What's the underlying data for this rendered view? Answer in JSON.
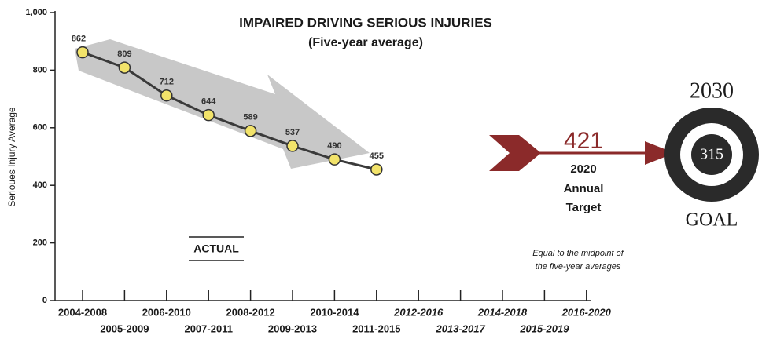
{
  "chart_data": {
    "type": "line",
    "title": "IMPAIRED DRIVING SERIOUS INJURIES",
    "subtitle": "(Five-year average)",
    "y_label": "Serioues Injury Average",
    "categories": [
      "2004-2008",
      "2005-2009",
      "2006-2010",
      "2007-2011",
      "2008-2012",
      "2009-2013",
      "2010-2014",
      "2011-2015",
      "2012-2016",
      "2013-2017",
      "2014-2018",
      "2015-2019",
      "2016-2020"
    ],
    "series": [
      {
        "name": "ACTUAL",
        "color": "#3a3a3a",
        "marker_color": "#f2e36a",
        "values": [
          862,
          809,
          712,
          644,
          589,
          537,
          490,
          455,
          null,
          null,
          null,
          null,
          null
        ]
      }
    ],
    "ylim": [
      0,
      1000
    ],
    "yticks": [
      0,
      200,
      400,
      600,
      800,
      {
        "value": 1000,
        "label": "1,000"
      }
    ],
    "target": {
      "value": 421,
      "year": "2020",
      "lines": [
        "Annual",
        "Target"
      ],
      "color": "#8b2a2a"
    },
    "goal": {
      "value": 315,
      "year": "2030",
      "label": "GOAL"
    },
    "note": [
      "Equal to the midpoint of",
      "the five-year averages"
    ]
  }
}
